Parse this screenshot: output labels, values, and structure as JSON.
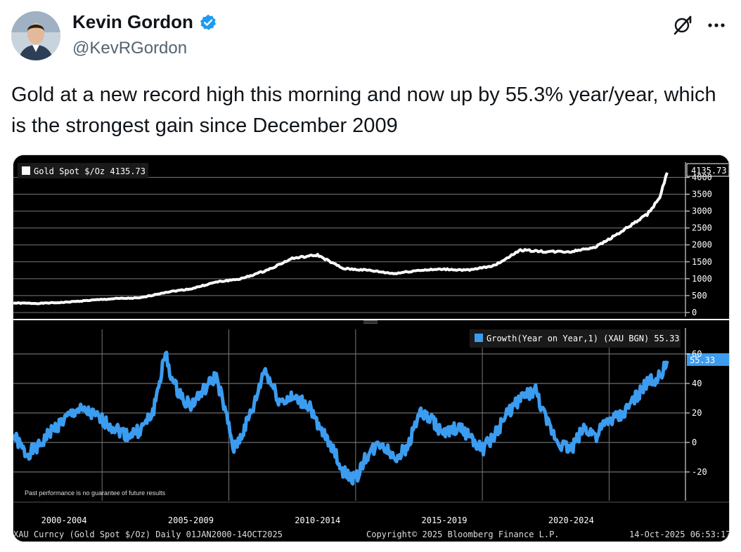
{
  "author": {
    "name": "Kevin Gordon",
    "handle": "@KevRGordon",
    "verified": true,
    "verified_color": "#1d9bf0"
  },
  "icons": {
    "grok": "grok-icon",
    "more": "more-icon",
    "verified": "verified-badge-icon"
  },
  "tweet": {
    "text": "Gold at a new record high this morning and now up by 55.3% year/year, which is the strongest gain since December 2009"
  },
  "chart": {
    "top_legend": "Gold Spot $/Oz  4135.73",
    "top_last_label": "4135.73",
    "bottom_legend": "Growth(Year on Year,1) (XAU BGN) 55.33",
    "bottom_last_label": "55.33",
    "disclaimer": "Past performance is no guarantee of future results",
    "footer_left": "XAU Curncy (Gold Spot  $/Oz) Daily 01JAN2000-14OCT2025",
    "footer_center": "Copyright© 2025 Bloomberg Finance L.P.",
    "footer_right": "14-Oct-2025 06:53:17",
    "top_axis_ticks": [
      "4000",
      "3500",
      "3000",
      "2500",
      "2000",
      "1500",
      "1000",
      "500",
      "0"
    ],
    "bottom_axis_ticks": [
      "60",
      "40",
      "20",
      "0",
      "-20"
    ],
    "x_labels": [
      "2000-2004",
      "2005-2009",
      "2010-2014",
      "2015-2019",
      "2020-2024"
    ],
    "colors": {
      "price": "#ffffff",
      "growth": "#3b9cf0",
      "background": "#000000",
      "grid": "#777777"
    }
  },
  "chart_data": [
    {
      "type": "line",
      "title": "Gold Spot $/Oz",
      "series": [
        {
          "name": "Gold Spot $/Oz",
          "last_value": 4135.73
        }
      ],
      "x": [
        2000,
        2001,
        2002,
        2003,
        2004,
        2005,
        2006,
        2007,
        2008,
        2009,
        2010,
        2011,
        2012,
        2013,
        2014,
        2015,
        2016,
        2017,
        2018,
        2019,
        2020,
        2021,
        2022,
        2023,
        2024,
        2025,
        2025.5,
        2025.79
      ],
      "values": [
        280,
        270,
        300,
        360,
        410,
        430,
        600,
        700,
        900,
        1000,
        1250,
        1600,
        1700,
        1300,
        1250,
        1150,
        1250,
        1280,
        1250,
        1400,
        1850,
        1800,
        1800,
        1950,
        2400,
        2900,
        3400,
        4135.73
      ],
      "ylim": [
        0,
        4300
      ],
      "xlim": [
        2000,
        2025.79
      ]
    },
    {
      "type": "line",
      "title": "Growth(Year on Year,1) (XAU BGN)",
      "series": [
        {
          "name": "Growth(Year on Year,1) (XAU BGN)",
          "last_value": 55.33
        }
      ],
      "x": [
        2000,
        2000.5,
        2001,
        2001.5,
        2002,
        2002.5,
        2003,
        2003.5,
        2004,
        2004.5,
        2005,
        2005.5,
        2006,
        2006.3,
        2006.7,
        2007,
        2007.5,
        2008,
        2008.3,
        2008.7,
        2009,
        2009.5,
        2009.9,
        2010.5,
        2011,
        2011.7,
        2012,
        2012.5,
        2013,
        2013.5,
        2013.9,
        2014.5,
        2015,
        2015.5,
        2016,
        2016.5,
        2017,
        2017.5,
        2018,
        2018.5,
        2019,
        2019.5,
        2020,
        2020.6,
        2021,
        2021.5,
        2022,
        2022.5,
        2023,
        2023.5,
        2024,
        2024.5,
        2025,
        2025.5,
        2025.79
      ],
      "values": [
        5,
        -8,
        -3,
        8,
        15,
        22,
        20,
        15,
        10,
        5,
        8,
        20,
        60,
        40,
        30,
        25,
        35,
        45,
        25,
        -5,
        5,
        25,
        50,
        28,
        30,
        25,
        10,
        0,
        -20,
        -25,
        -10,
        0,
        -10,
        -5,
        20,
        15,
        5,
        10,
        5,
        -5,
        5,
        20,
        30,
        35,
        15,
        0,
        -5,
        10,
        5,
        15,
        18,
        30,
        40,
        45,
        55.33
      ],
      "ylim": [
        -30,
        70
      ],
      "xlim": [
        2000,
        2025.79
      ]
    }
  ]
}
